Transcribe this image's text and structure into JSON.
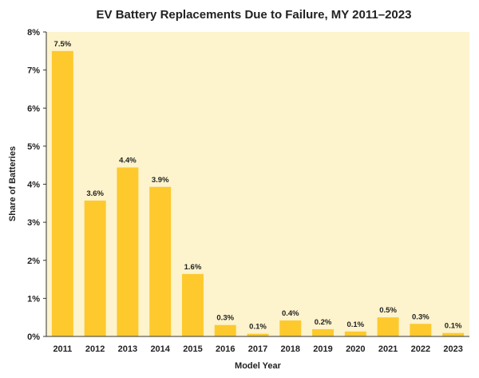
{
  "chart_data": {
    "type": "bar",
    "title": "EV Battery Replacements Due to Failure, MY 2011–2023",
    "xlabel": "Model Year",
    "ylabel": "Share of Batteries",
    "categories": [
      "2011",
      "2012",
      "2013",
      "2014",
      "2015",
      "2016",
      "2017",
      "2018",
      "2019",
      "2020",
      "2021",
      "2022",
      "2023"
    ],
    "values": [
      7.5,
      3.57,
      4.44,
      3.93,
      1.64,
      0.3,
      0.07,
      0.42,
      0.19,
      0.13,
      0.5,
      0.33,
      0.09
    ],
    "data_labels": [
      "7.5%",
      "3.6%",
      "4.4%",
      "3.9%",
      "1.6%",
      "0.3%",
      "0.1%",
      "0.4%",
      "0.2%",
      "0.1%",
      "0.5%",
      "0.3%",
      "0.1%"
    ],
    "y_ticks": [
      0,
      1,
      2,
      3,
      4,
      5,
      6,
      7,
      8
    ],
    "y_tick_labels": [
      "0%",
      "1%",
      "2%",
      "3%",
      "4%",
      "5%",
      "6%",
      "7%",
      "8%"
    ],
    "ylim": [
      0,
      8
    ],
    "grid": false,
    "legend": "none",
    "colors": {
      "plot_background": "#fdf3cc",
      "bar": "#fdc92d",
      "text": "#222222",
      "axis": "#333333"
    }
  }
}
